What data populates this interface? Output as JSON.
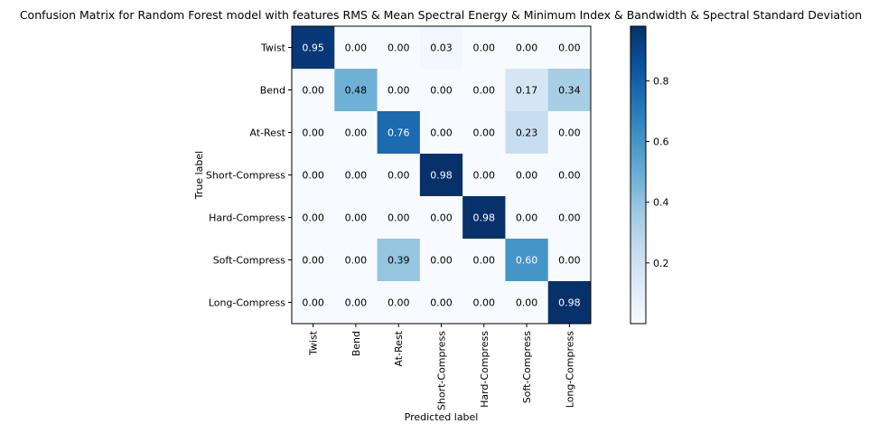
{
  "chart_data": {
    "type": "heatmap",
    "title": "Confusion Matrix for Random Forest model with features RMS & Mean Spectral Energy & Minimum Index & Bandwidth & Spectral Standard Deviation",
    "xlabel": "Predicted label",
    "ylabel": "True label",
    "row_labels": [
      "Twist",
      "Bend",
      "At-Rest",
      "Short-Compress",
      "Hard-Compress",
      "Soft-Compress",
      "Long-Compress"
    ],
    "col_labels": [
      "Twist",
      "Bend",
      "At-Rest",
      "Short-Compress",
      "Hard-Compress",
      "Soft-Compress",
      "Long-Compress"
    ],
    "values": [
      [
        0.95,
        0.0,
        0.0,
        0.03,
        0.0,
        0.0,
        0.0
      ],
      [
        0.0,
        0.48,
        0.0,
        0.0,
        0.0,
        0.17,
        0.34
      ],
      [
        0.0,
        0.0,
        0.76,
        0.0,
        0.0,
        0.23,
        0.0
      ],
      [
        0.0,
        0.0,
        0.0,
        0.98,
        0.0,
        0.0,
        0.0
      ],
      [
        0.0,
        0.0,
        0.0,
        0.0,
        0.98,
        0.0,
        0.0
      ],
      [
        0.0,
        0.0,
        0.39,
        0.0,
        0.0,
        0.6,
        0.0
      ],
      [
        0.0,
        0.0,
        0.0,
        0.0,
        0.0,
        0.0,
        0.98
      ]
    ],
    "value_labels": [
      [
        "0.95",
        "0.00",
        "0.00",
        "0.03",
        "0.00",
        "0.00",
        "0.00"
      ],
      [
        "0.00",
        "0.48",
        "0.00",
        "0.00",
        "0.00",
        "0.17",
        "0.34"
      ],
      [
        "0.00",
        "0.00",
        "0.76",
        "0.00",
        "0.00",
        "0.23",
        "0.00"
      ],
      [
        "0.00",
        "0.00",
        "0.00",
        "0.98",
        "0.00",
        "0.00",
        "0.00"
      ],
      [
        "0.00",
        "0.00",
        "0.00",
        "0.00",
        "0.98",
        "0.00",
        "0.00"
      ],
      [
        "0.00",
        "0.00",
        "0.39",
        "0.00",
        "0.00",
        "0.60",
        "0.00"
      ],
      [
        "0.00",
        "0.00",
        "0.00",
        "0.00",
        "0.00",
        "0.00",
        "0.98"
      ]
    ],
    "colormap": "Blues",
    "color_range": [
      0.0,
      0.98
    ],
    "colorbar_ticks": [
      0.2,
      0.4,
      0.6,
      0.8
    ],
    "colorbar_tick_labels": [
      "0.2",
      "0.4",
      "0.6",
      "0.8"
    ],
    "grid": false
  }
}
